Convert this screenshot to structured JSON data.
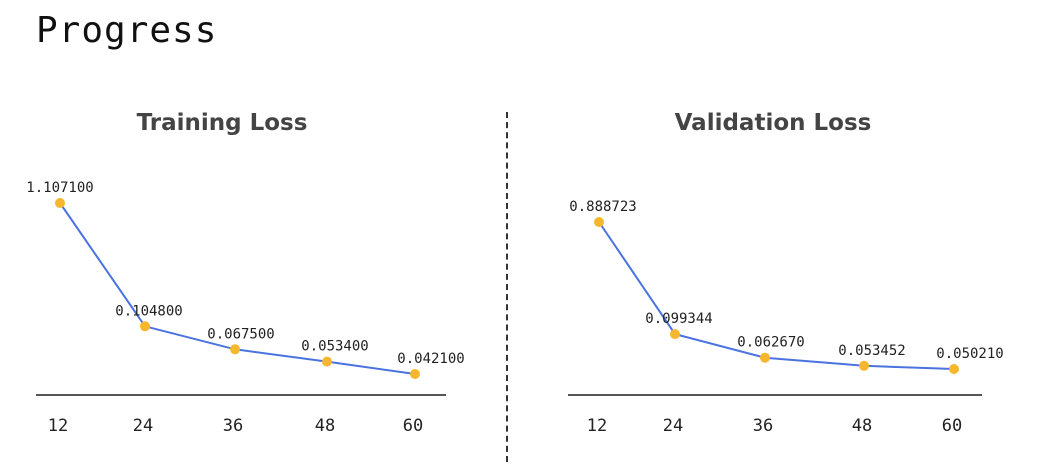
{
  "page_title": "Progress",
  "colors": {
    "line": "#4a73e0",
    "point": "#f6b62e",
    "axis": "#555555"
  },
  "chart_data": [
    {
      "type": "line",
      "title": "Training Loss",
      "categories": [
        "12",
        "24",
        "36",
        "48",
        "60"
      ],
      "values": [
        1.1071,
        0.1048,
        0.0675,
        0.0534,
        0.0421
      ],
      "data_labels": [
        "1.107100",
        "0.104800",
        "0.067500",
        "0.053400",
        "0.042100"
      ],
      "xlabel": "",
      "ylabel": "",
      "grid": false,
      "legend": "none"
    },
    {
      "type": "line",
      "title": "Validation Loss",
      "categories": [
        "12",
        "24",
        "36",
        "48",
        "60"
      ],
      "values": [
        0.888723,
        0.099344,
        0.06267,
        0.053452,
        0.05021
      ],
      "data_labels": [
        "0.888723",
        "0.099344",
        "0.062670",
        "0.053452",
        "0.050210"
      ],
      "xlabel": "",
      "ylabel": "",
      "grid": false,
      "legend": "none"
    }
  ]
}
